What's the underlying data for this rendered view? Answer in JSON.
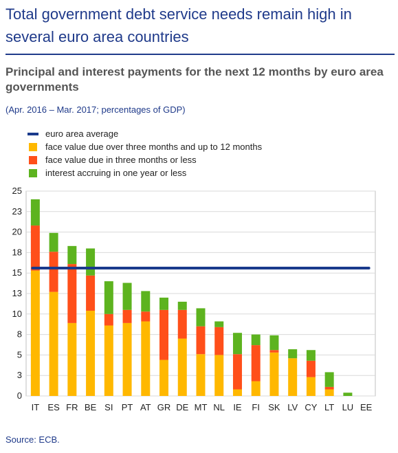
{
  "header": {
    "headline": "Total government debt service needs remain high in several euro area countries",
    "subtitle": "Principal and interest payments for the next 12 months by euro area governments",
    "unit_note": "(Apr. 2016 – Mar. 2017; percentages of GDP)"
  },
  "footer": {
    "source": "Source: ECB."
  },
  "colors": {
    "average_line": "#1a3a8c",
    "over_three_months": "#ffb800",
    "three_months_or_less": "#ff4f1a",
    "interest": "#5db31f",
    "text_blue": "#1f3a8a"
  },
  "chart_data": {
    "type": "bar",
    "stacked": true,
    "categories": [
      "IT",
      "ES",
      "FR",
      "BE",
      "SI",
      "PT",
      "AT",
      "GR",
      "DE",
      "MT",
      "NL",
      "IE",
      "FI",
      "SK",
      "LV",
      "CY",
      "LT",
      "LU",
      "EE"
    ],
    "y_tick_labels": [
      "0",
      "3",
      "5",
      "8",
      "10",
      "13",
      "15",
      "18",
      "20",
      "23",
      "25"
    ],
    "ylim": [
      0,
      25
    ],
    "grid": true,
    "legend_position": "top-left",
    "average": {
      "name": "euro area average",
      "value": 15.6
    },
    "series": [
      {
        "name": "face value due over three months and up to 12 months",
        "color": "#ffb800",
        "values": [
          15.3,
          12.7,
          8.9,
          10.4,
          8.6,
          8.9,
          9.1,
          4.4,
          7.0,
          5.1,
          5.0,
          0.8,
          1.8,
          5.3,
          4.6,
          2.3,
          0.8,
          0,
          0
        ]
      },
      {
        "name": "face value due in three months or less",
        "color": "#ff4f1a",
        "values": [
          5.5,
          4.9,
          7.2,
          4.3,
          1.4,
          1.6,
          1.2,
          6.1,
          3.5,
          3.4,
          3.4,
          4.3,
          4.4,
          0.3,
          0,
          2.0,
          0.3,
          0,
          0
        ]
      },
      {
        "name": "interest accruing in one year or less",
        "color": "#5db31f",
        "values": [
          3.2,
          2.3,
          2.2,
          3.3,
          4.0,
          3.3,
          2.5,
          1.5,
          1.0,
          2.2,
          0.7,
          2.6,
          1.3,
          1.8,
          1.1,
          1.3,
          1.8,
          0.4,
          0
        ]
      }
    ]
  }
}
